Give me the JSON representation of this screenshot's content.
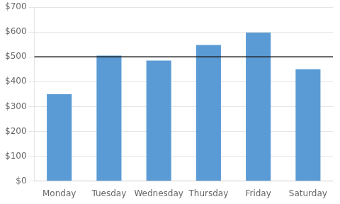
{
  "chart_data": {
    "type": "bar",
    "categories": [
      "Monday",
      "Tuesday",
      "Wednesday",
      "Thursday",
      "Friday",
      "Saturday"
    ],
    "values": [
      350,
      505,
      485,
      548,
      598,
      450
    ],
    "color": "#5B9BD5",
    "target_line": {
      "value": 500,
      "color": "#1a1a1a"
    },
    "ylim": [
      0,
      700
    ],
    "yticks": [
      {
        "value": 0,
        "label": "$0"
      },
      {
        "value": 100,
        "label": "$100"
      },
      {
        "value": 200,
        "label": "$200"
      },
      {
        "value": 300,
        "label": "$300"
      },
      {
        "value": 400,
        "label": "$400"
      },
      {
        "value": 500,
        "label": "$500"
      },
      {
        "value": 600,
        "label": "$600"
      },
      {
        "value": 700,
        "label": "$700"
      }
    ],
    "grid": true
  }
}
